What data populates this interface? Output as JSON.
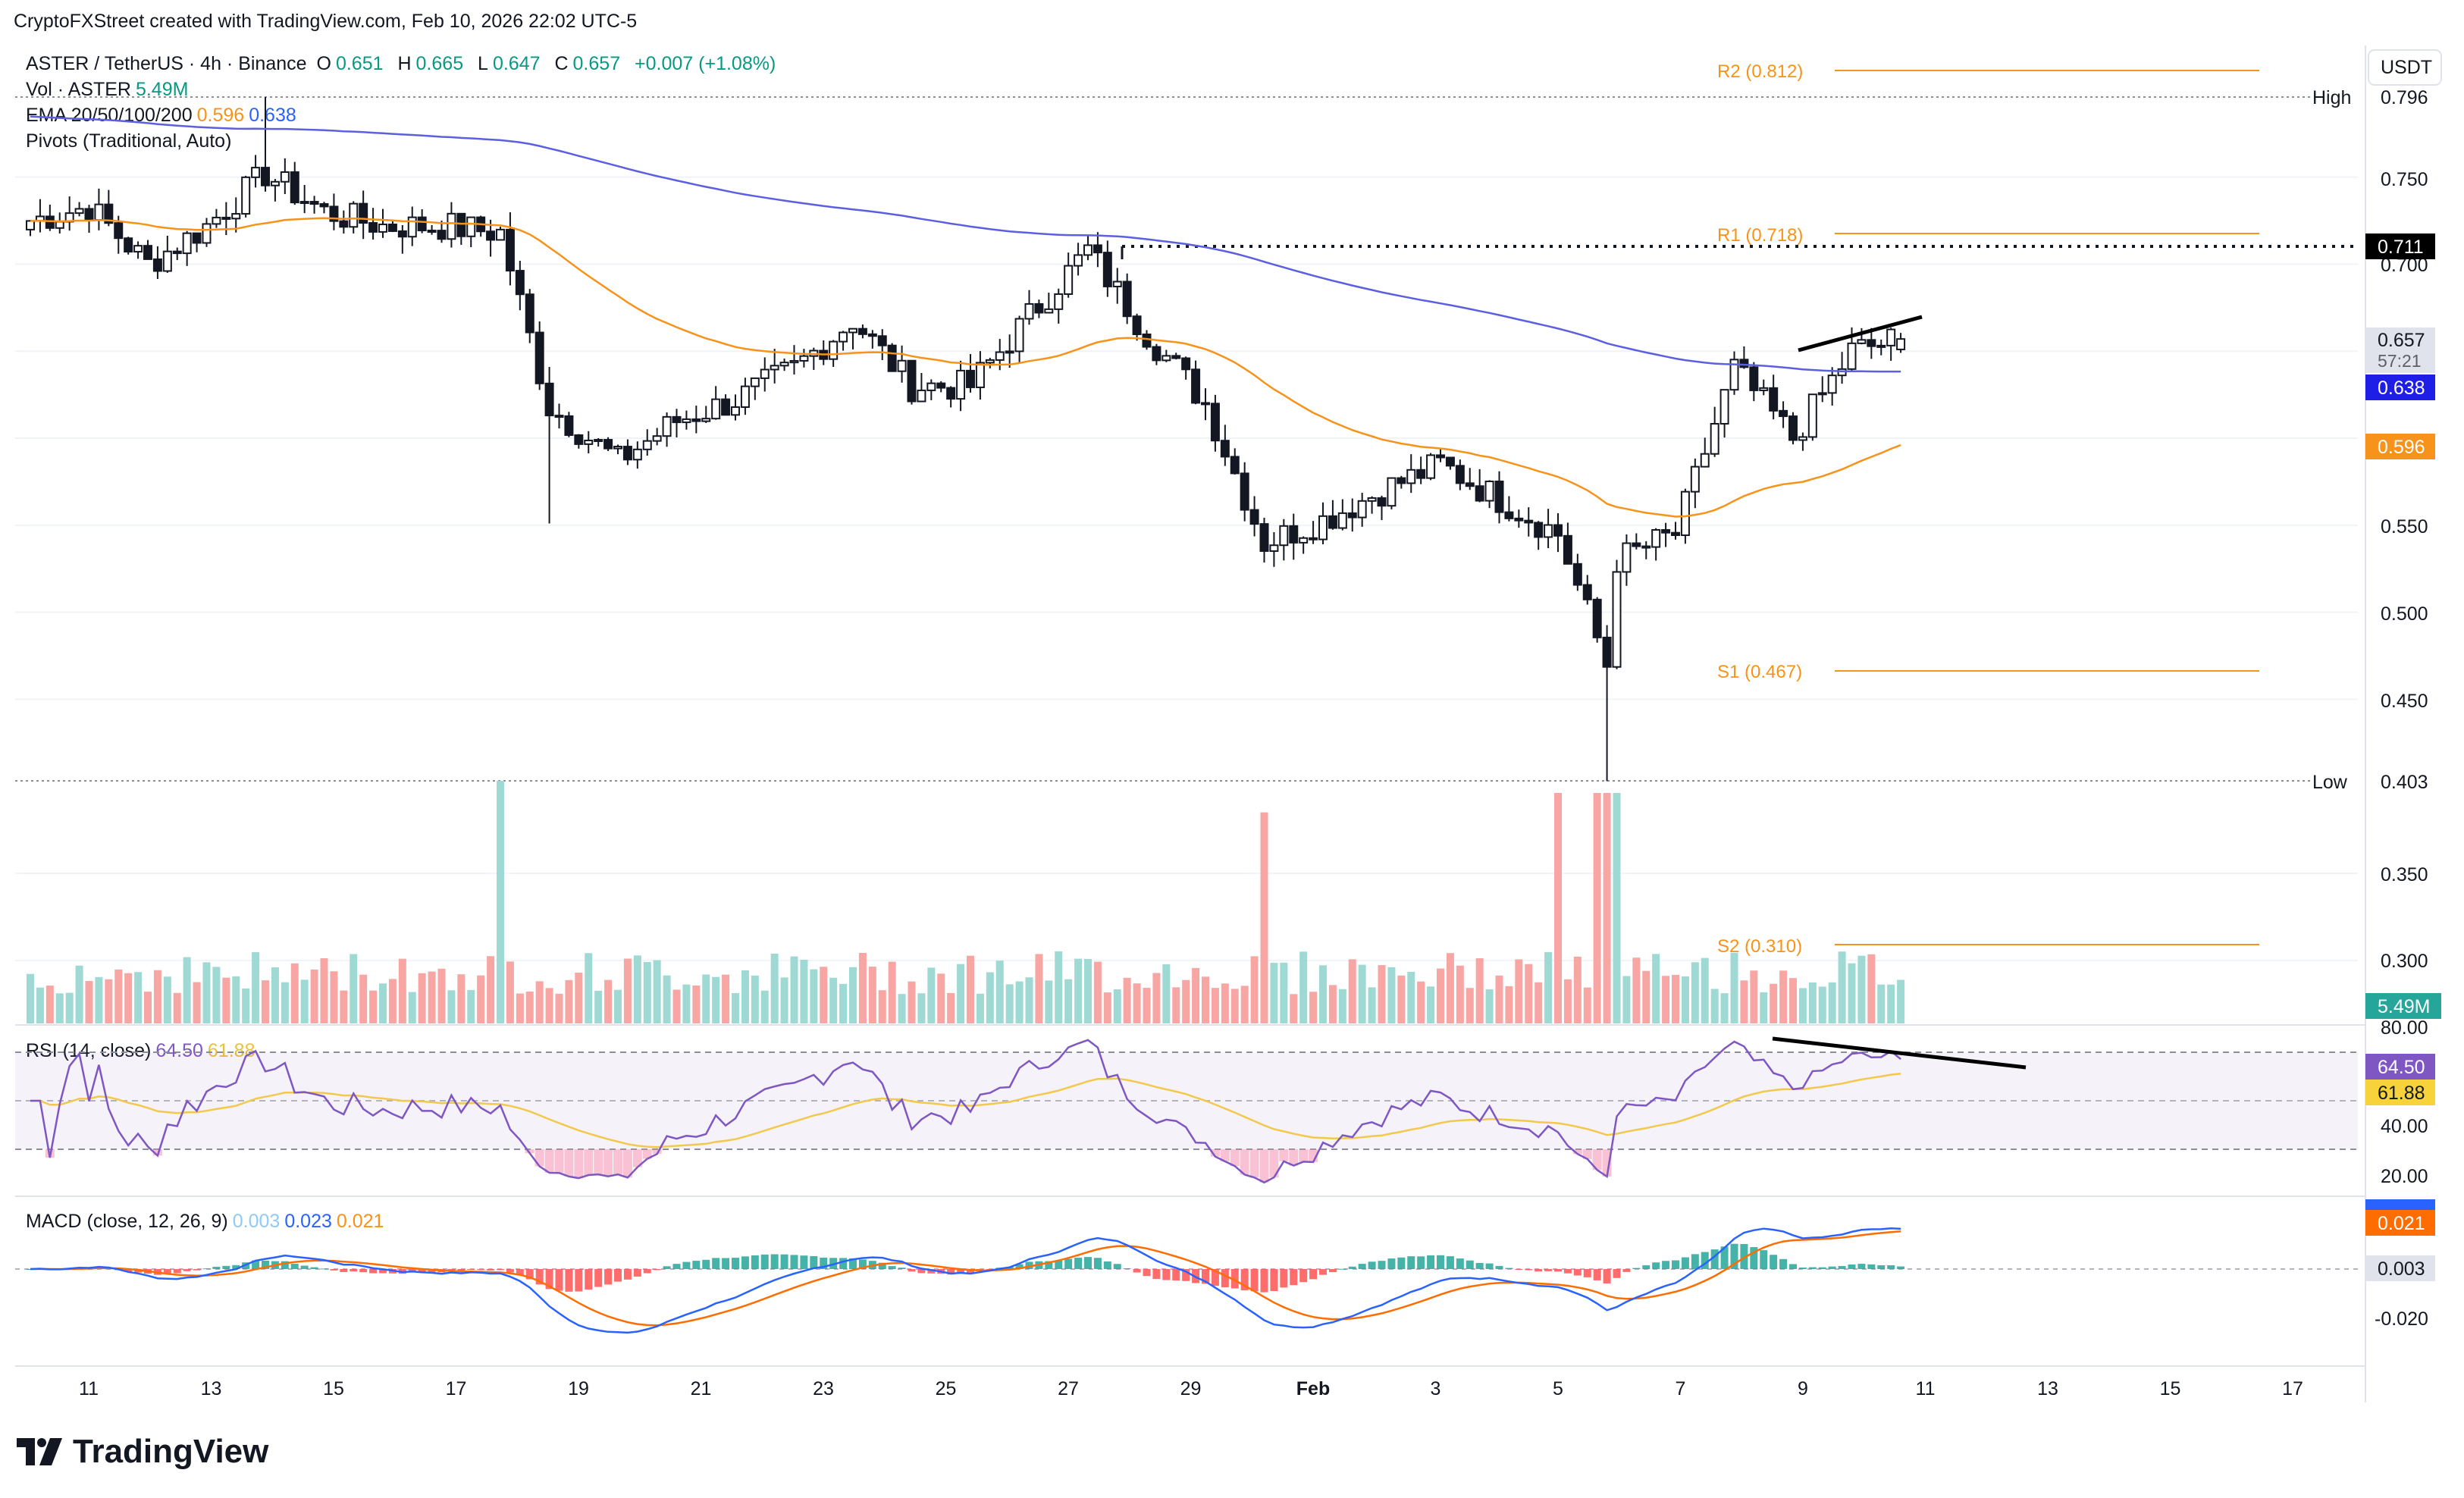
{
  "header": {
    "credit": "CryptoFXStreet created with TradingView.com, Feb 10, 2026 22:02 UTC-5"
  },
  "legend": {
    "symbol_line": "ASTER / TetherUS · 4h · Binance",
    "open_label": "O",
    "open": "0.651",
    "high_label": "H",
    "high": "0.665",
    "low_label": "L",
    "low": "0.647",
    "close_label": "C",
    "close": "0.657",
    "change": "+0.007 (+1.08%)",
    "vol_label": "Vol · ASTER",
    "vol_value": "5.49M",
    "ema_label": "EMA 20/50/100/200",
    "ema_50": "0.596",
    "ema_200": "0.638",
    "pivots_label": "Pivots (Traditional, Auto)",
    "rsi_label": "RSI (14, close)",
    "rsi_value": "64.50",
    "rsi_ma": "61.88",
    "macd_label": "MACD (close, 12, 26, 9)",
    "macd_hist": "0.003",
    "macd_line": "0.023",
    "macd_signal": "0.021"
  },
  "price_axis": {
    "currency": "USDT",
    "ticks": [
      "0.750",
      "0.700",
      "0.550",
      "0.500",
      "0.450",
      "0.350",
      "0.300"
    ],
    "high_label": "High",
    "high_value": "0.796",
    "low_label": "Low",
    "low_value": "0.403",
    "resistance_marker": "0.711",
    "last_price": "0.657",
    "countdown": "57:21",
    "ema200_tag": "0.638",
    "ema50_tag": "0.596",
    "volume_tag": "5.49M"
  },
  "rsi_axis": {
    "ticks": [
      "80.00",
      "40.00",
      "20.00"
    ],
    "rsi_tag": "64.50",
    "ma_tag": "61.88"
  },
  "macd_axis": {
    "ticks": [
      "0.020",
      "-0.020"
    ],
    "line_tag": "0.023",
    "signal_tag": "0.021",
    "hist_tag": "0.003"
  },
  "time_axis": {
    "labels": [
      "11",
      "13",
      "15",
      "17",
      "19",
      "21",
      "23",
      "25",
      "27",
      "29",
      "Feb",
      "3",
      "5",
      "7",
      "9",
      "11",
      "13",
      "15",
      "17"
    ]
  },
  "pivots": {
    "R2": "R2 (0.812)",
    "R1": "R1 (0.718)",
    "S1": "S1 (0.467)",
    "S2": "S2 (0.310)"
  },
  "brand": "TradingView",
  "colors": {
    "up": "#26a69a",
    "down": "#ef5350",
    "ema50": "#f7931a",
    "ema200": "#5b5fe0",
    "pivot": "#f7931a",
    "rsi": "#7e57c2",
    "rsi_ma": "#f2c94c",
    "macd": "#2962ff",
    "signal": "#ff6d00"
  },
  "chart_data": [
    {
      "type": "candlestick",
      "title": "ASTER / TetherUS · 4h · Binance",
      "x_axis": [
        "11",
        "13",
        "15",
        "17",
        "19",
        "21",
        "23",
        "25",
        "27",
        "29",
        "Feb",
        "3",
        "5",
        "7",
        "9",
        "11",
        "13",
        "15",
        "17"
      ],
      "ylim": [
        0.25,
        0.82
      ],
      "ohlc_anchor_points": [
        {
          "date": "Jan 10",
          "close": 0.725
        },
        {
          "date": "Jan 11",
          "close": 0.733
        },
        {
          "date": "Jan 12",
          "close": 0.7
        },
        {
          "date": "Jan 13",
          "close": 0.722
        },
        {
          "date": "Jan 14",
          "close": 0.752
        },
        {
          "date": "Jan 15",
          "close": 0.73
        },
        {
          "date": "Jan 16",
          "close": 0.722
        },
        {
          "date": "Jan 17",
          "close": 0.722
        },
        {
          "date": "Jan 18",
          "close": 0.718
        },
        {
          "date": "Jan 18 20h",
          "close": 0.618
        },
        {
          "date": "Jan 20",
          "close": 0.587
        },
        {
          "date": "Jan 21",
          "close": 0.61
        },
        {
          "date": "Jan 22",
          "close": 0.622
        },
        {
          "date": "Jan 23",
          "close": 0.64
        },
        {
          "date": "Jan 24",
          "close": 0.668
        },
        {
          "date": "Jan 25",
          "close": 0.63
        },
        {
          "date": "Jan 26",
          "close": 0.63
        },
        {
          "date": "Jan 27",
          "close": 0.67
        },
        {
          "date": "Jan 28",
          "close": 0.708
        },
        {
          "date": "Jan 29",
          "close": 0.66
        },
        {
          "date": "Jan 30",
          "close": 0.62
        },
        {
          "date": "Jan 31",
          "close": 0.54
        },
        {
          "date": "Feb 1",
          "close": 0.553
        },
        {
          "date": "Feb 2",
          "close": 0.57
        },
        {
          "date": "Feb 3",
          "close": 0.585
        },
        {
          "date": "Feb 4",
          "close": 0.565
        },
        {
          "date": "Feb 5",
          "close": 0.545
        },
        {
          "date": "Feb 5 20h",
          "close": 0.47
        },
        {
          "date": "Feb 6",
          "close": 0.53
        },
        {
          "date": "Feb 7",
          "close": 0.545
        },
        {
          "date": "Feb 8",
          "close": 0.64
        },
        {
          "date": "Feb 9",
          "close": 0.6
        },
        {
          "date": "Feb 10",
          "close": 0.65
        },
        {
          "date": "Feb 10 20h",
          "close": 0.657
        }
      ],
      "series": [
        {
          "name": "EMA 50",
          "last": 0.596
        },
        {
          "name": "EMA 200",
          "last": 0.638
        }
      ],
      "pivot_levels": {
        "R2": 0.812,
        "R1": 0.718,
        "S1": 0.467,
        "S2": 0.31
      },
      "high": 0.796,
      "low": 0.403
    },
    {
      "type": "bar",
      "title": "Vol · ASTER",
      "last": "5.49M",
      "spikes": [
        {
          "date": "Jan 18",
          "relative": 1.0
        },
        {
          "date": "Jan 31",
          "relative": 0.87
        },
        {
          "date": "Feb 5",
          "relative": 0.95
        }
      ]
    },
    {
      "type": "line",
      "title": "RSI (14, close)",
      "ylim": [
        10,
        90
      ],
      "series": [
        {
          "name": "RSI",
          "last": 64.5
        },
        {
          "name": "MA",
          "last": 61.88
        }
      ],
      "bands": [
        30,
        70
      ]
    },
    {
      "type": "line",
      "title": "MACD (close, 12, 26, 9)",
      "series": [
        {
          "name": "MACD",
          "last": 0.023
        },
        {
          "name": "Signal",
          "last": 0.021
        },
        {
          "name": "Histogram",
          "last": 0.003
        }
      ]
    }
  ]
}
